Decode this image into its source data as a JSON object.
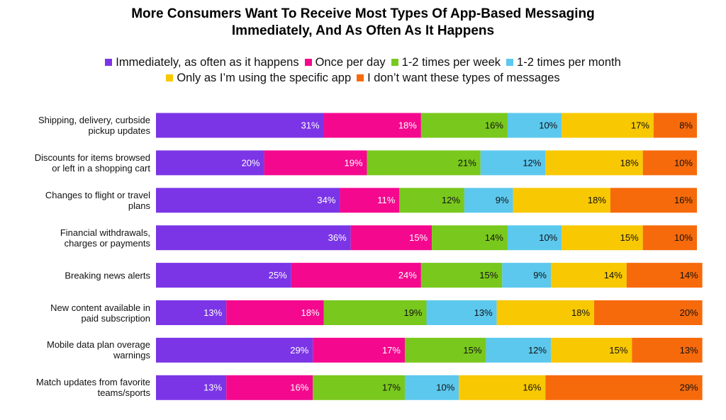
{
  "chart_data": {
    "type": "stacked-bar-horizontal",
    "title": "More Consumers Want To Receive Most Types Of App-Based Messaging\nImmediately, And As Often As It Happens",
    "categories": [
      "Shipping, delivery, curbside\npickup updates",
      "Discounts for items browsed\nor left in a shopping cart",
      "Changes to flight or travel\nplans",
      "Financial withdrawals,\ncharges or payments",
      "Breaking news alerts",
      "New content available in\npaid subscription",
      "Mobile data plan overage\nwarnings",
      "Match updates from favorite\nteams/sports"
    ],
    "series": [
      {
        "name": "Immediately, as often as it happens",
        "color": "#7b35e6",
        "values": [
          31,
          20,
          34,
          36,
          25,
          13,
          29,
          13
        ],
        "value_labels": [
          "31%",
          "20%",
          "34%",
          "36%",
          "25%",
          "13%",
          "29%",
          "13%"
        ]
      },
      {
        "name": "Once per day",
        "color": "#f4088e",
        "values": [
          18,
          19,
          11,
          15,
          24,
          18,
          17,
          16
        ],
        "value_labels": [
          "18%",
          "19%",
          "11%",
          "15%",
          "24%",
          "18%",
          "17%",
          "16%"
        ]
      },
      {
        "name": "1-2 times per week",
        "color": "#79c81d",
        "values": [
          16,
          21,
          12,
          14,
          15,
          19,
          15,
          17
        ],
        "value_labels": [
          "16%",
          "21%",
          "12%",
          "14%",
          "15%",
          "19%",
          "15%",
          "17%"
        ]
      },
      {
        "name": "1-2 times per month",
        "color": "#5cc8ee",
        "values": [
          10,
          12,
          9,
          10,
          9,
          13,
          12,
          10
        ],
        "value_labels": [
          "10%",
          "12%",
          "9%",
          "10%",
          "9%",
          "13%",
          "12%",
          "10%"
        ]
      },
      {
        "name": "Only as I’m using the specific app",
        "color": "#f8c802",
        "values": [
          17,
          18,
          18,
          15,
          14,
          18,
          15,
          16
        ],
        "value_labels": [
          "17%",
          "18%",
          "18%",
          "15%",
          "14%",
          "18%",
          "15%",
          "16%"
        ]
      },
      {
        "name": "I don’t want these types of messages",
        "color": "#f66a0b",
        "values": [
          8,
          10,
          16,
          10,
          14,
          20,
          13,
          29
        ],
        "value_labels": [
          "8%",
          "10%",
          "16%",
          "10%",
          "14%",
          "20%",
          "13%",
          "29%"
        ]
      }
    ]
  }
}
